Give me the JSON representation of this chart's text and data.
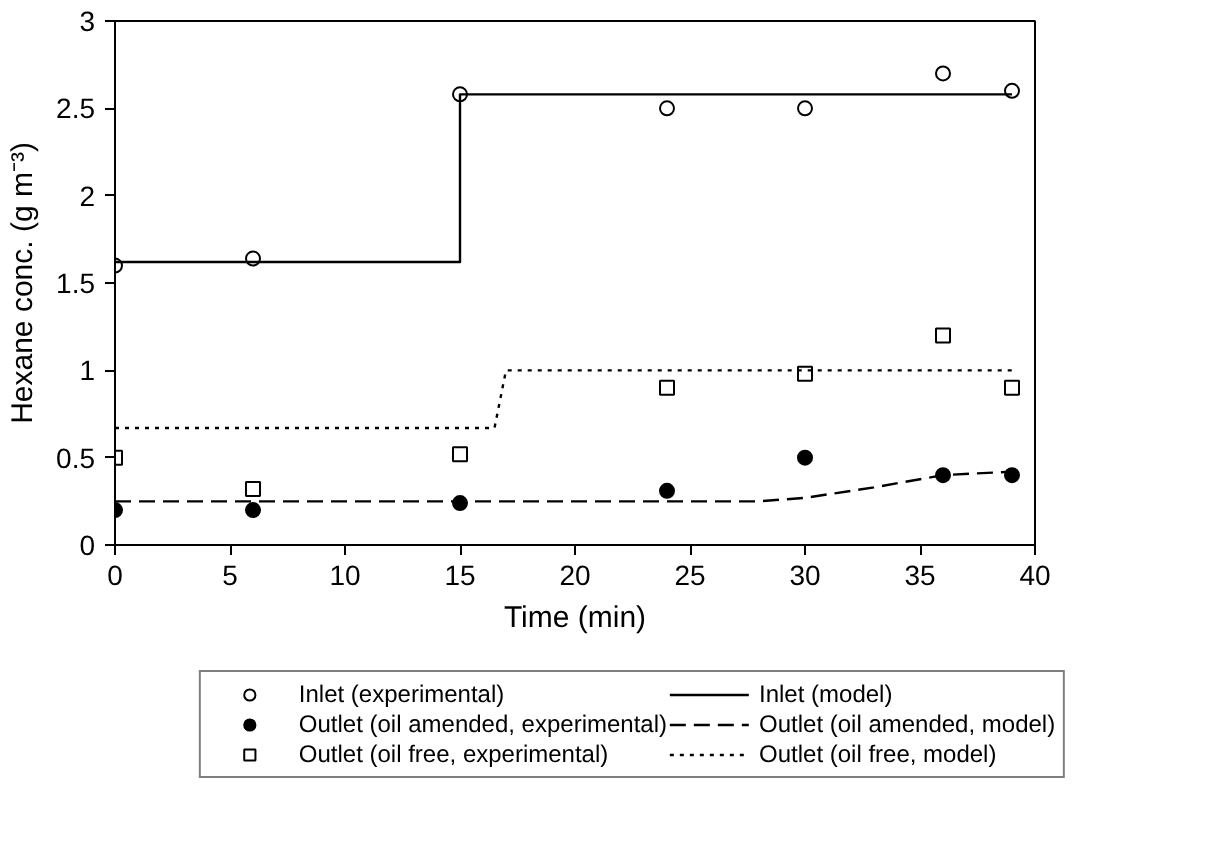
{
  "chart_data": {
    "type": "scatter",
    "xlabel": "Time (min)",
    "ylabel": "Hexane conc. (g m⁻³)",
    "xlim": [
      0,
      40
    ],
    "ylim": [
      0,
      3
    ],
    "xticks": [
      0,
      5,
      10,
      15,
      20,
      25,
      30,
      35,
      40
    ],
    "yticks": [
      0,
      0.5,
      1,
      1.5,
      2,
      2.5,
      3
    ],
    "grid": false,
    "legend": "bottom",
    "series": [
      {
        "name": "Inlet (experimental)",
        "marker": "circle_open",
        "color": "#000000",
        "x": [
          0,
          6,
          15,
          24,
          30,
          36,
          39
        ],
        "values": [
          1.6,
          1.64,
          2.58,
          2.5,
          2.5,
          2.7,
          2.6
        ]
      },
      {
        "name": "Outlet (oil amended, experimental)",
        "marker": "circle",
        "color": "#000000",
        "x": [
          0,
          6,
          15,
          24,
          30,
          36,
          39
        ],
        "values": [
          0.2,
          0.2,
          0.24,
          0.31,
          0.5,
          0.4,
          0.4
        ]
      },
      {
        "name": "Outlet (oil free, experimental)",
        "marker": "square_open",
        "color": "#000000",
        "x": [
          0,
          6,
          15,
          24,
          30,
          36,
          39
        ],
        "values": [
          0.5,
          0.32,
          0.52,
          0.9,
          0.98,
          1.2,
          0.9
        ]
      },
      {
        "name": "Inlet (model)",
        "type": "line",
        "line_style": "solid",
        "color": "#000000",
        "x": [
          0,
          15,
          15,
          39
        ],
        "values": [
          1.62,
          1.62,
          2.58,
          2.58
        ]
      },
      {
        "name": "Outlet (oil amended, model)",
        "type": "line",
        "line_style": "dashed",
        "color": "#000000",
        "x": [
          0,
          28,
          30,
          33,
          36,
          39
        ],
        "values": [
          0.25,
          0.25,
          0.27,
          0.33,
          0.4,
          0.42
        ]
      },
      {
        "name": "Outlet (oil free, model)",
        "type": "line",
        "line_style": "dotted",
        "color": "#000000",
        "x": [
          0,
          16.5,
          17,
          39
        ],
        "values": [
          0.67,
          0.67,
          1.0,
          1.0
        ]
      }
    ]
  }
}
